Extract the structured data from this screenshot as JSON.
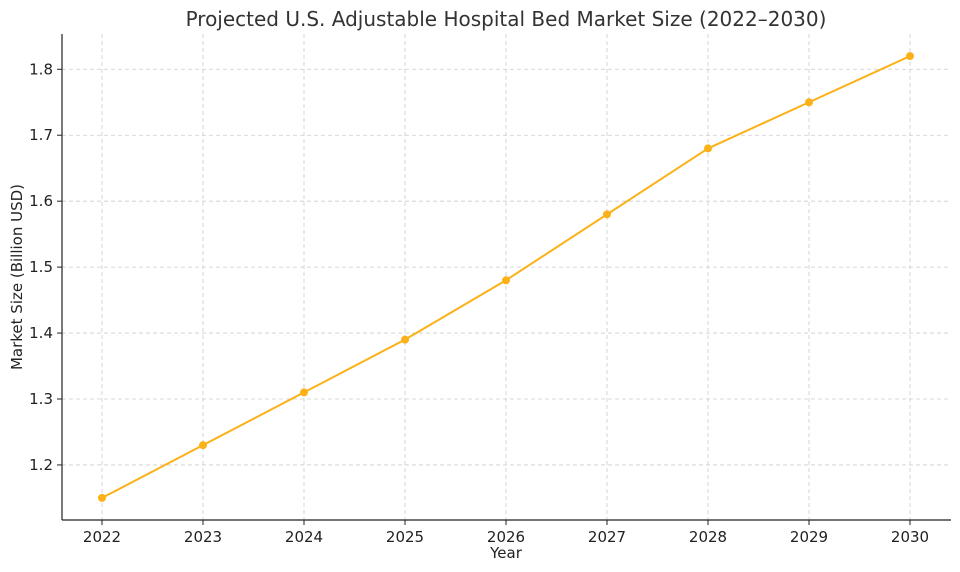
{
  "chart_data": {
    "type": "line",
    "title": "Projected U.S. Adjustable Hospital Bed Market Size (2022–2030)",
    "xlabel": "Year",
    "ylabel": "Market Size (Billion USD)",
    "x": [
      "2022",
      "2023",
      "2024",
      "2025",
      "2026",
      "2027",
      "2028",
      "2029",
      "2030"
    ],
    "series": [
      {
        "values": [
          1.15,
          1.23,
          1.31,
          1.39,
          1.48,
          1.58,
          1.68,
          1.75,
          1.82
        ]
      }
    ],
    "yticks": [
      1.2,
      1.3,
      1.4,
      1.5,
      1.6,
      1.7,
      1.8
    ],
    "ylim": [
      1.1165,
      1.8535
    ],
    "grid": true,
    "line_color": "#FBB117",
    "marker": "circle"
  }
}
